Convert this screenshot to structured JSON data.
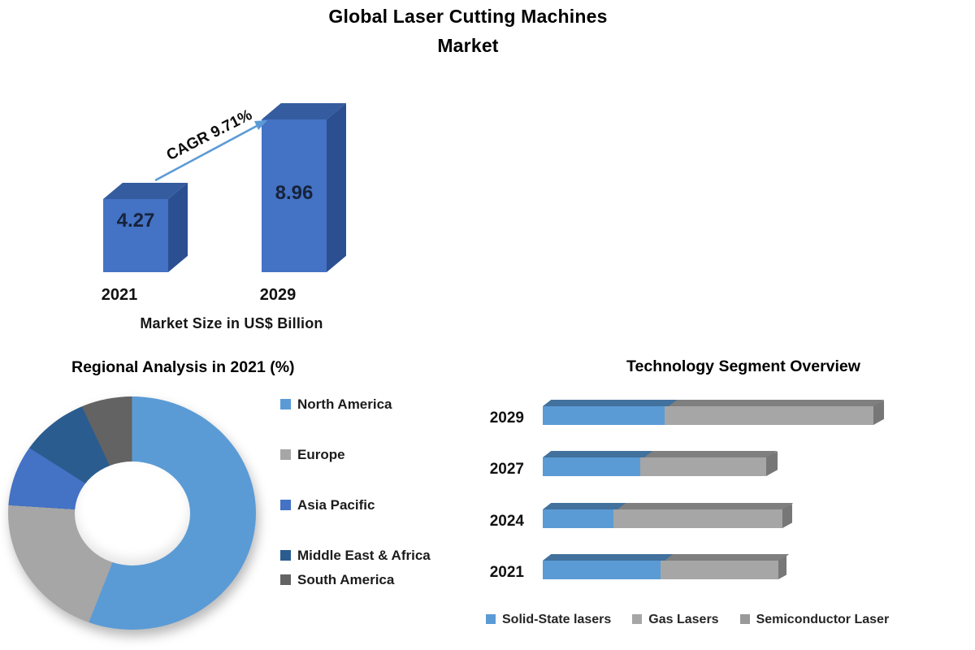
{
  "header": {
    "title_line1": "Global Laser Cutting Machines",
    "title_line2": "Market"
  },
  "colors": {
    "light_blue": "#5B9BD5",
    "medium_blue": "#4472C4",
    "dark_blue": "#2A5C8F",
    "gray": "#A6A6A6",
    "dark_gray": "#636363",
    "column_side": "#2B4F91",
    "column_top": "#355C9E",
    "strip_blue": "#41719C",
    "strip_gray": "#7F7F7F",
    "cap_gray": "#777777",
    "arrow": "#5B9BD5"
  },
  "chart_data": [
    {
      "id": "market_size",
      "type": "bar",
      "title": "Global Laser Cutting Machines Market",
      "categories": [
        "2021",
        "2029"
      ],
      "values": [
        4.27,
        8.96
      ],
      "annotation": "CAGR 9.71%",
      "xlabel": "Market Size in US$ Billion",
      "ylabel": "",
      "bar_color": "#4472C4",
      "style": "3d-columns"
    },
    {
      "id": "regional",
      "type": "pie",
      "donut": true,
      "title": "Regional Analysis in 2021 (%)",
      "labels": [
        "North America",
        "Europe",
        "Asia Pacific",
        "Middle East & Africa",
        "South America"
      ],
      "values": [
        56,
        20,
        8,
        9,
        7
      ],
      "colors": [
        "#5B9BD5",
        "#A6A6A6",
        "#4472C4",
        "#2A5C8F",
        "#636363"
      ],
      "legend_position": "right",
      "note": "no data labels shown; percentages estimated from arc angles"
    },
    {
      "id": "technology",
      "type": "bar",
      "orientation": "horizontal",
      "stacked": true,
      "title": "Technology Segment Overview",
      "categories": [
        "2029",
        "2027",
        "2024",
        "2021"
      ],
      "series": [
        {
          "name": "Solid-State lasers",
          "color": "#5B9BD5",
          "values": [
            150,
            120,
            87,
            145
          ]
        },
        {
          "name": "Gas Lasers",
          "color": "#A6A6A6",
          "values": [
            257,
            155,
            208,
            145
          ]
        },
        {
          "name": "Semiconductor Laser",
          "color": "#999999",
          "values": [
            13,
            14,
            12,
            10
          ]
        }
      ],
      "legend_position": "bottom",
      "units_note": "no axis shown; values are relative lengths estimated from pixels"
    }
  ]
}
